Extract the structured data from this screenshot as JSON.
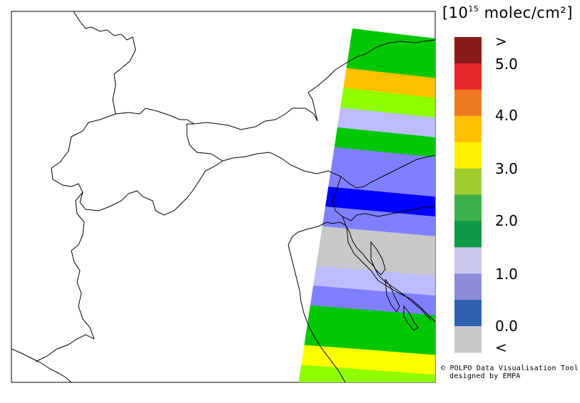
{
  "legend": {
    "unit_prefix": "[10",
    "unit_exponent": "15",
    "unit_suffix": " molec/cm²]",
    "ticks": [
      ">",
      "5.0",
      "4.0",
      "3.0",
      "2.0",
      "1.0",
      "0.0",
      "<"
    ],
    "swatch_colors": [
      "#8b1a1a",
      "#e8282a",
      "#f07a22",
      "#ffc000",
      "#fff000",
      "#a0cc30",
      "#3cb04a",
      "#0e9a48",
      "#c8c8ec",
      "#8c8cd8",
      "#3060b0",
      "#c8c8c8"
    ]
  },
  "swath_band_colors": [
    "#00c800",
    "#00c800",
    "#ffc000",
    "#90ff00",
    "#bcbcff",
    "#00c800",
    "#8080ff",
    "#8080ff",
    "#0000ff",
    "#8080ff",
    "#c8c8c8",
    "#c8c8c8",
    "#bcbcff",
    "#8080ff",
    "#00c800",
    "#00c800",
    "#ffff00",
    "#90ff00"
  ],
  "credit": {
    "line1": "© POLPO Data Visualisation Tool",
    "line2": "designed by EMPA"
  }
}
